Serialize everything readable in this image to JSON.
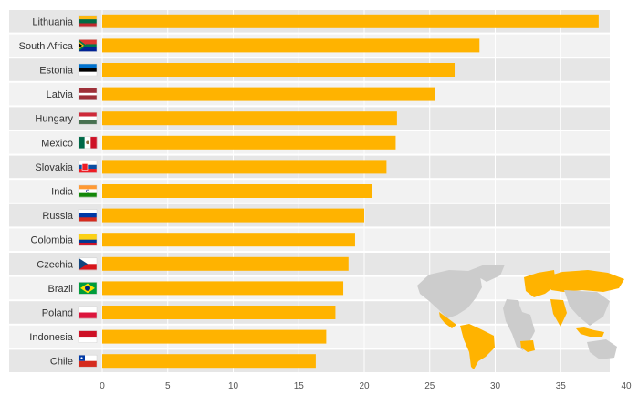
{
  "colors": {
    "bar": "#ffb300",
    "band_light": "#f2f2f2",
    "band_dark": "#e6e6e6",
    "gridline": "#ffffff",
    "map_land": "#cccccc",
    "map_highlight": "#ffb300"
  },
  "chart_data": {
    "type": "bar",
    "orientation": "horizontal",
    "title": "",
    "xlabel": "",
    "ylabel": "",
    "categories": [
      "Lithuania",
      "South Africa",
      "Estonia",
      "Latvia",
      "Hungary",
      "Mexico",
      "Slovakia",
      "India",
      "Russia",
      "Colombia",
      "Czechia",
      "Brazil",
      "Poland",
      "Indonesia",
      "Chile"
    ],
    "values": [
      37.9,
      28.8,
      26.9,
      25.4,
      22.5,
      22.4,
      21.7,
      20.6,
      20.0,
      19.3,
      18.8,
      18.4,
      17.8,
      17.1,
      16.3
    ],
    "xlim": [
      0,
      40
    ],
    "xticks": [
      0,
      5,
      10,
      15,
      20,
      25,
      30,
      35,
      40
    ],
    "grid": true,
    "legend": "none",
    "flags": [
      {
        "country": "Lithuania",
        "icon": "lithuania-flag-icon"
      },
      {
        "country": "South Africa",
        "icon": "south-africa-flag-icon"
      },
      {
        "country": "Estonia",
        "icon": "estonia-flag-icon"
      },
      {
        "country": "Latvia",
        "icon": "latvia-flag-icon"
      },
      {
        "country": "Hungary",
        "icon": "hungary-flag-icon"
      },
      {
        "country": "Mexico",
        "icon": "mexico-flag-icon"
      },
      {
        "country": "Slovakia",
        "icon": "slovakia-flag-icon"
      },
      {
        "country": "India",
        "icon": "india-flag-icon"
      },
      {
        "country": "Russia",
        "icon": "russia-flag-icon"
      },
      {
        "country": "Colombia",
        "icon": "colombia-flag-icon"
      },
      {
        "country": "Czechia",
        "icon": "czechia-flag-icon"
      },
      {
        "country": "Brazil",
        "icon": "brazil-flag-icon"
      },
      {
        "country": "Poland",
        "icon": "poland-flag-icon"
      },
      {
        "country": "Indonesia",
        "icon": "indonesia-flag-icon"
      },
      {
        "country": "Chile",
        "icon": "chile-flag-icon"
      }
    ],
    "inset_map": {
      "icon": "world-map-icon",
      "highlighted_regions": [
        "Mexico",
        "Colombia",
        "Brazil",
        "Chile",
        "South Africa",
        "Europe",
        "Russia",
        "India",
        "Indonesia"
      ]
    }
  }
}
